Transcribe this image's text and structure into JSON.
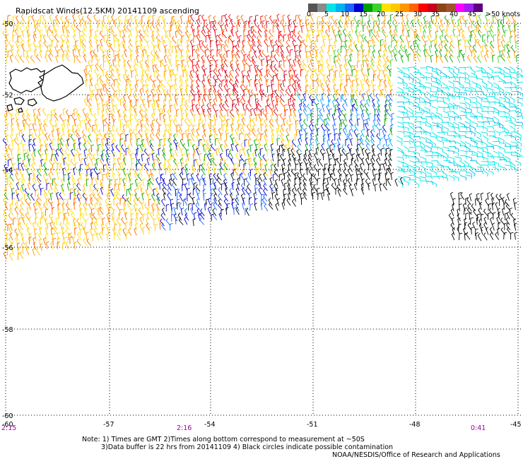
{
  "title": "Rapidscat Winds(12.5KM) 20141109 ascending",
  "legend": {
    "colors": [
      "#545454",
      "#8a8a8a",
      "#00e5e5",
      "#00b2ee",
      "#1c66ff",
      "#0000cd",
      "#00a000",
      "#3cd22d",
      "#ffe100",
      "#ffc800",
      "#ff9600",
      "#ff6400",
      "#ff0000",
      "#c8001e",
      "#8b4513",
      "#a0522d",
      "#ff00ff",
      "#a020f0",
      "#5f0080"
    ],
    "labels": [
      "0",
      "5",
      "10",
      "15",
      "20",
      "25",
      "30",
      "35",
      "40",
      "45",
      ">50 knots"
    ]
  },
  "lat_labels": [
    "-50",
    "-52",
    "-54",
    "-56",
    "-58",
    "-60"
  ],
  "lon_labels": [
    "-60",
    "-57",
    "-54",
    "-51",
    "-48",
    "-45"
  ],
  "times": {
    "left": "2:15",
    "mid": "2:16",
    "right": "0:41",
    "color": "#a000a0"
  },
  "notes": {
    "line1": "Note: 1) Times are GMT 2)Times along bottom correspond to measurement at ~50S",
    "line2": "3)Data buffer is 22 hrs from 20141109 4) Black circles indicate possible contamination",
    "line3": "NOAA/NESDIS/Office of Research and Applications"
  }
}
